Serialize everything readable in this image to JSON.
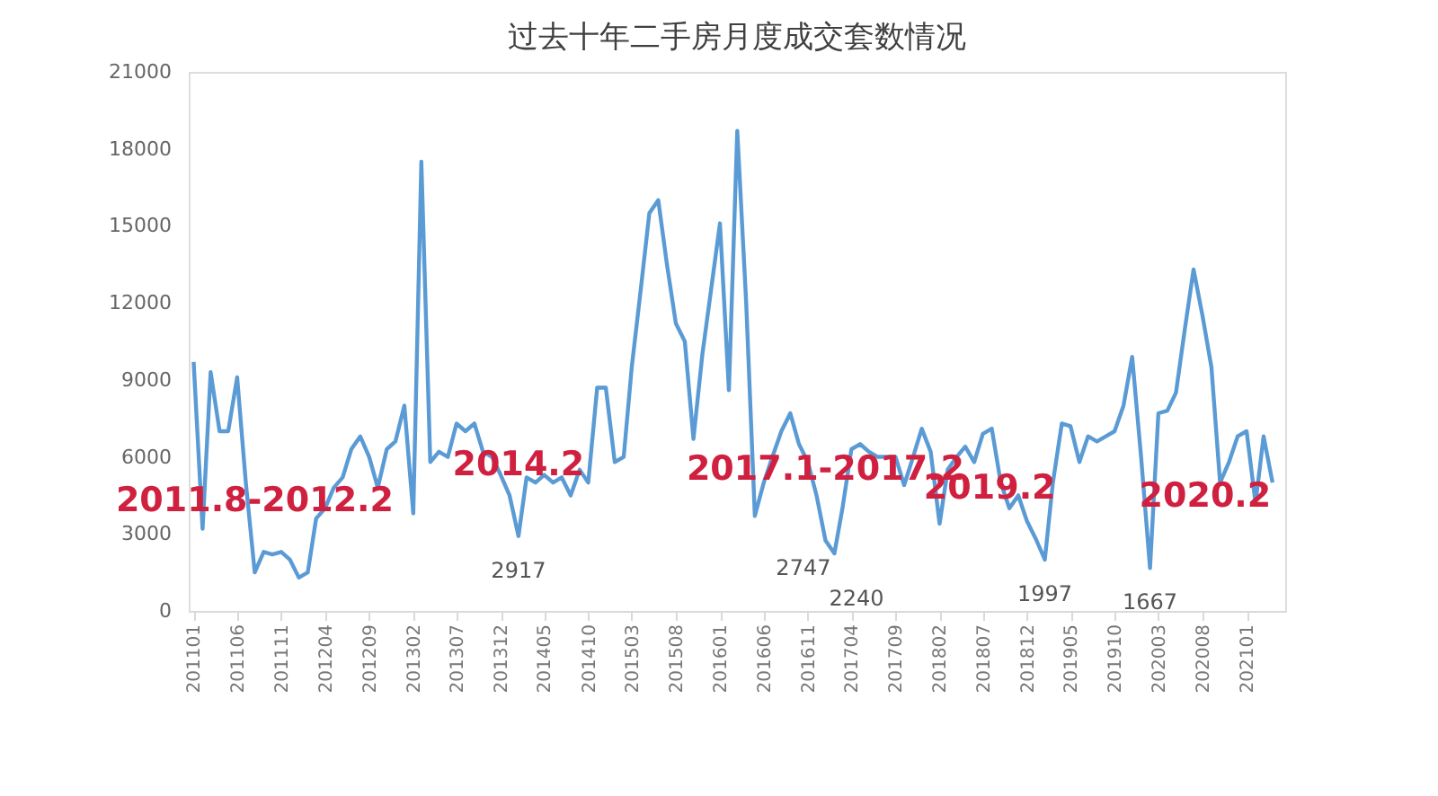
{
  "chart_data": {
    "type": "line",
    "title": "过去十年二手房月度成交套数情况",
    "x": [
      "2011-01",
      "2011-02",
      "2011-03",
      "2011-04",
      "2011-05",
      "2011-06",
      "2011-07",
      "2011-08",
      "2011-09",
      "2011-10",
      "2011-11",
      "2011-12",
      "2012-01",
      "2012-02",
      "2012-03",
      "2012-04",
      "2012-05",
      "2012-06",
      "2012-07",
      "2012-08",
      "2012-09",
      "2012-10",
      "2012-11",
      "2012-12",
      "2013-01",
      "2013-02",
      "2013-03",
      "2013-04",
      "2013-05",
      "2013-06",
      "2013-07",
      "2013-08",
      "2013-09",
      "2013-10",
      "2013-11",
      "2013-12",
      "2014-01",
      "2014-02",
      "2014-03",
      "2014-04",
      "2014-05",
      "2014-06",
      "2014-07",
      "2014-08",
      "2014-09",
      "2014-10",
      "2014-11",
      "2014-12",
      "2015-01",
      "2015-02",
      "2015-03",
      "2015-04",
      "2015-05",
      "2015-06",
      "2015-07",
      "2015-08",
      "2015-09",
      "2015-10",
      "2015-11",
      "2015-12",
      "2016-01",
      "2016-02",
      "2016-03",
      "2016-04",
      "2016-05",
      "2016-06",
      "2016-07",
      "2016-08",
      "2016-09",
      "2016-10",
      "2016-11",
      "2016-12",
      "2017-01",
      "2017-02",
      "2017-03",
      "2017-04",
      "2017-05",
      "2017-06",
      "2017-07",
      "2017-08",
      "2017-09",
      "2017-10",
      "2017-11",
      "2017-12",
      "2018-01",
      "2018-02",
      "2018-03",
      "2018-04",
      "2018-05",
      "2018-06",
      "2018-07",
      "2018-08",
      "2018-09",
      "2018-10",
      "2018-11",
      "2018-12",
      "2019-01",
      "2019-02",
      "2019-03",
      "2019-04",
      "2019-05",
      "2019-06",
      "2019-07",
      "2019-08",
      "2019-09",
      "2019-10",
      "2019-11",
      "2019-12",
      "2020-01",
      "2020-02",
      "2020-03",
      "2020-04",
      "2020-05",
      "2020-06",
      "2020-07",
      "2020-08",
      "2020-09",
      "2020-10",
      "2020-11",
      "2020-12",
      "2021-01",
      "2021-02",
      "2021-03",
      "2021-04"
    ],
    "series": [
      {
        "color": "#5b9bd5",
        "values": [
          9700,
          3200,
          9300,
          7000,
          7000,
          9100,
          5000,
          1500,
          2300,
          2200,
          2300,
          2000,
          1300,
          1500,
          3600,
          4000,
          4800,
          5200,
          6300,
          6800,
          6000,
          4800,
          6300,
          6600,
          8000,
          3800,
          17500,
          5800,
          6200,
          6000,
          7300,
          7000,
          7300,
          6200,
          6000,
          5300,
          4500,
          2917,
          5200,
          5000,
          5300,
          5000,
          5200,
          4500,
          5500,
          5000,
          8700,
          8700,
          5800,
          6000,
          9500,
          12500,
          15500,
          16000,
          13500,
          11200,
          10500,
          6700,
          10000,
          12500,
          15100,
          8600,
          18700,
          12000,
          3700,
          5000,
          6000,
          7000,
          7700,
          6500,
          5800,
          4500,
          2747,
          2240,
          4000,
          6300,
          6500,
          6200,
          6000,
          6000,
          6000,
          4900,
          6000,
          7100,
          6200,
          3400,
          5500,
          6000,
          6400,
          5800,
          6900,
          7100,
          5000,
          4000,
          4500,
          3500,
          2800,
          1997,
          5000,
          7300,
          7200,
          5800,
          6800,
          6600,
          6800,
          7000,
          8000,
          9900,
          6000,
          1667,
          7700,
          7800,
          8500,
          11000,
          13300,
          11500,
          9500,
          5000,
          5800,
          6800,
          7000,
          4200,
          6800,
          5000
        ]
      }
    ],
    "xlim": [
      "2010-12-15",
      "2021-05-15"
    ],
    "xticks": [
      {
        "value": "2011-01",
        "label": "201101"
      },
      {
        "value": "2011-06",
        "label": "201106"
      },
      {
        "value": "2011-11",
        "label": "201111"
      },
      {
        "value": "2012-04",
        "label": "201204"
      },
      {
        "value": "2012-09",
        "label": "201209"
      },
      {
        "value": "2013-02",
        "label": "201302"
      },
      {
        "value": "2013-07",
        "label": "201307"
      },
      {
        "value": "2013-12",
        "label": "201312"
      },
      {
        "value": "2014-05",
        "label": "201405"
      },
      {
        "value": "2014-10",
        "label": "201410"
      },
      {
        "value": "2015-03",
        "label": "201503"
      },
      {
        "value": "2015-08",
        "label": "201508"
      },
      {
        "value": "2016-01",
        "label": "201601"
      },
      {
        "value": "2016-06",
        "label": "201606"
      },
      {
        "value": "2016-11",
        "label": "201611"
      },
      {
        "value": "2017-04",
        "label": "201704"
      },
      {
        "value": "2017-09",
        "label": "201709"
      },
      {
        "value": "2018-02",
        "label": "201802"
      },
      {
        "value": "2018-07",
        "label": "201807"
      },
      {
        "value": "2018-12",
        "label": "201812"
      },
      {
        "value": "2019-05",
        "label": "201905"
      },
      {
        "value": "2019-10",
        "label": "201910"
      },
      {
        "value": "2020-03",
        "label": "202003"
      },
      {
        "value": "2020-08",
        "label": "202008"
      },
      {
        "value": "2021-01",
        "label": "202101"
      }
    ],
    "ylim": [
      0,
      21000
    ],
    "yticks": [
      0,
      3000,
      6000,
      9000,
      12000,
      15000,
      18000,
      21000
    ],
    "grid": false,
    "marker": "none",
    "line_style": "solid",
    "annotations": [
      {
        "text": "2011.8-2012.2",
        "x": "2011-08",
        "y": 1500
      },
      {
        "text": "2917",
        "x": "2014-02",
        "y": 2917
      },
      {
        "text": "2014.2",
        "x": "2014-02",
        "y": 2917
      },
      {
        "text": "2747",
        "x": "2017-01",
        "y": 2747
      },
      {
        "text": "2240",
        "x": "2017-02",
        "y": 2240
      },
      {
        "text": "2017.1-2017.2",
        "x": "2017-01",
        "y": 2747
      },
      {
        "text": "1997",
        "x": "2019-02",
        "y": 1997
      },
      {
        "text": "2019.2",
        "x": "2019-02",
        "y": 1997
      },
      {
        "text": "1667",
        "x": "2020-02",
        "y": 1667
      },
      {
        "text": "2020.2",
        "x": "2020-02",
        "y": 1667
      }
    ]
  }
}
